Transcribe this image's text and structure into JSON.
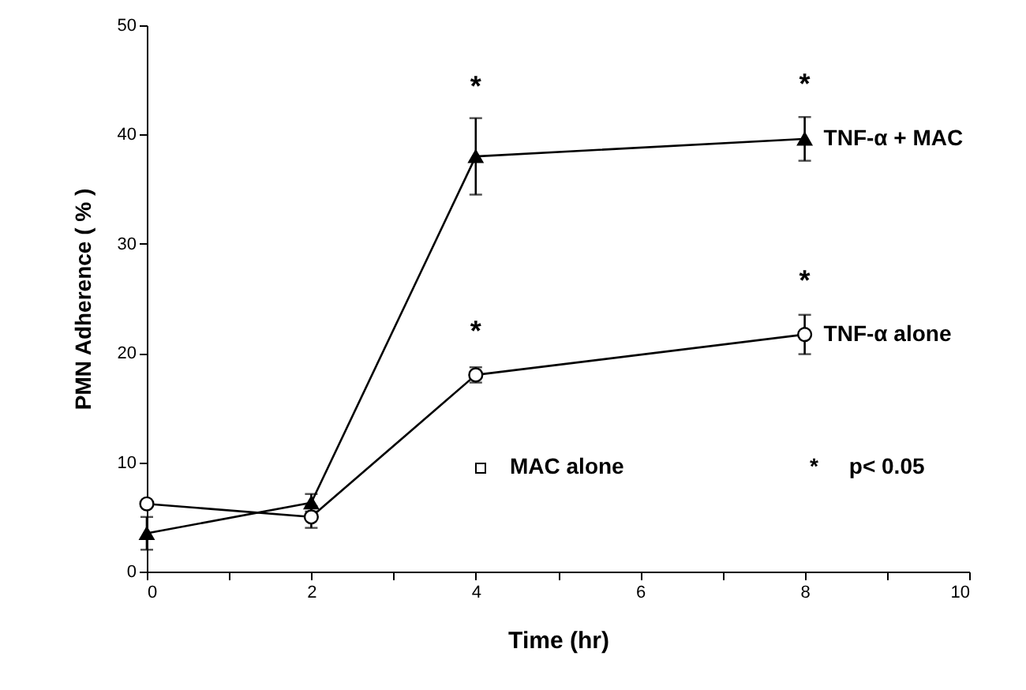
{
  "chart_data": {
    "type": "line",
    "xlabel": "Time (hr)",
    "ylabel": "PMN Adherence ( % )",
    "xlim": [
      0,
      10
    ],
    "ylim": [
      0,
      50
    ],
    "xticks": [
      0,
      {
        "value": 1,
        "label": null
      },
      2,
      {
        "value": 3,
        "label": null
      },
      4,
      {
        "value": 5,
        "label": null
      },
      6,
      {
        "value": 7,
        "label": null
      },
      8,
      {
        "value": 9,
        "label": null
      },
      10
    ],
    "yticks": [
      0,
      10,
      20,
      30,
      40,
      50
    ],
    "x": [
      0,
      2,
      4,
      8
    ],
    "series": [
      {
        "name": "TNF-α + MAC",
        "color": "#000000",
        "marker": "triangle",
        "values": [
          3.5,
          6.3,
          38.0,
          39.6
        ],
        "errors": [
          1.5,
          0.8,
          3.5,
          2.0
        ]
      },
      {
        "name": "TNF-α alone",
        "color": "#000000",
        "marker": "circle",
        "values": [
          6.2,
          5.0,
          18.0,
          21.7
        ],
        "errors": [
          null,
          1.0,
          0.7,
          1.8
        ]
      }
    ],
    "annotations": [
      "*",
      "*",
      "*",
      "*",
      "MAC alone",
      "*     p< 0.05"
    ],
    "grid": false,
    "line_style": "solid"
  }
}
